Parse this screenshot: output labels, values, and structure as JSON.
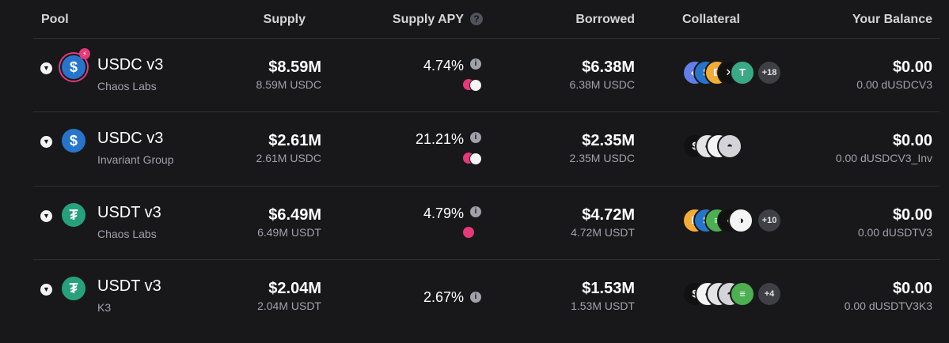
{
  "header": {
    "pool": "Pool",
    "supply": "Supply",
    "supply_apy": "Supply APY",
    "borrowed": "Borrowed",
    "collateral": "Collateral",
    "your_balance": "Your Balance",
    "help_glyph": "?",
    "info_glyph": "i"
  },
  "colors": {
    "usdc": "#2775ca",
    "usdt": "#26a17b",
    "accent_pink": "#e6397a",
    "background": "#18181b"
  },
  "rows": [
    {
      "pool_name": "USDC v3",
      "curator": "Chaos Labs",
      "icon": "usdc-icon",
      "supply_usd": "$8.59M",
      "supply_token": "8.59M USDC",
      "supply_apy": "4.74%",
      "borrowed_usd": "$6.38M",
      "borrowed_token": "6.38M USDC",
      "collateral_more": "+18",
      "balance_usd": "$0.00",
      "balance_token": "0.00 dUSDCV3"
    },
    {
      "pool_name": "USDC v3",
      "curator": "Invariant Group",
      "icon": "usdc-icon",
      "supply_usd": "$2.61M",
      "supply_token": "2.61M USDC",
      "supply_apy": "21.21%",
      "borrowed_usd": "$2.35M",
      "borrowed_token": "2.35M USDC",
      "balance_usd": "$0.00",
      "balance_token": "0.00 dUSDCV3_Inv"
    },
    {
      "pool_name": "USDT v3",
      "curator": "Chaos Labs",
      "icon": "usdt-icon",
      "supply_usd": "$6.49M",
      "supply_token": "6.49M USDT",
      "supply_apy": "4.79%",
      "borrowed_usd": "$4.72M",
      "borrowed_token": "4.72M USDT",
      "collateral_more": "+10",
      "balance_usd": "$0.00",
      "balance_token": "0.00 dUSDTV3"
    },
    {
      "pool_name": "USDT v3",
      "curator": "K3",
      "icon": "usdt-icon",
      "supply_usd": "$2.04M",
      "supply_token": "2.04M USDT",
      "supply_apy": "2.67%",
      "borrowed_usd": "$1.53M",
      "borrowed_token": "1.53M USDT",
      "collateral_more": "+4",
      "balance_usd": "$0.00",
      "balance_token": "0.00 dUSDTV3K3"
    }
  ]
}
